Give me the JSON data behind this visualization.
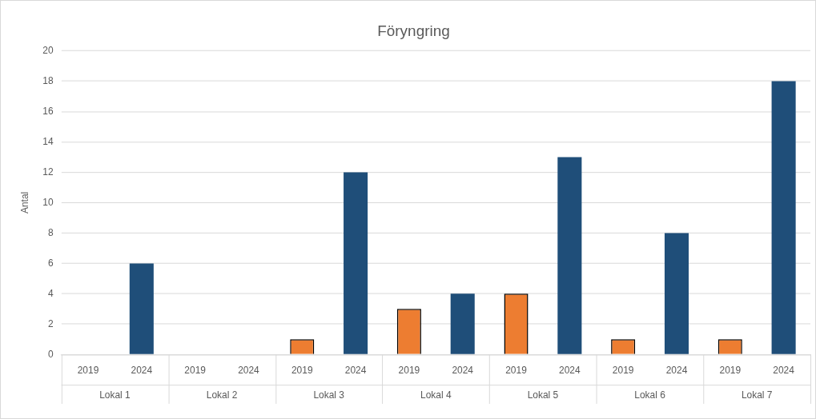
{
  "chart_data": {
    "type": "bar",
    "title": "Föryngring",
    "ylabel": "Antal",
    "categories": [
      "Lokal 1",
      "Lokal 2",
      "Lokal 3",
      "Lokal 4",
      "Lokal 5",
      "Lokal 6",
      "Lokal 7"
    ],
    "series": [
      {
        "name": "2019",
        "color": "#ed7d31",
        "values": [
          0,
          0,
          1,
          3,
          4,
          1,
          1
        ]
      },
      {
        "name": "2024",
        "color": "#1f4e79",
        "values": [
          6,
          0,
          12,
          4,
          13,
          8,
          18
        ]
      }
    ],
    "ylim": [
      0,
      20
    ],
    "yticks": [
      0,
      2,
      4,
      6,
      8,
      10,
      12,
      14,
      16,
      18,
      20
    ],
    "grid": "y",
    "legend": false
  }
}
